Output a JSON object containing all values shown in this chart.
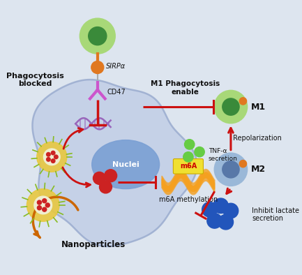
{
  "bg_color": "#dde5ef",
  "cell_color": "#c0cde6",
  "nuclei_color": "#7a9fd4",
  "macrophage_outer": "#a8d878",
  "macrophage_inner": "#3a8a3a",
  "m1_outer": "#a8d878",
  "m1_inner": "#3a8a3a",
  "m2_outer": "#9ab8d8",
  "m2_inner": "#5878a8",
  "nano_yellow": "#e8c840",
  "nano_green_spike": "#88bb22",
  "nano_red_dot": "#cc2222",
  "red_arrow": "#cc1111",
  "orange_arrow": "#cc6600",
  "tnf_dot": "#66cc44",
  "lactate_dot": "#2255bb",
  "m6a_color": "#f5a020",
  "m6a_bubble": "#f0e030",
  "dna_color": "#9966bb",
  "sirpa_color": "#e07820",
  "cd47_color": "#cc55cc",
  "text_dark": "#111111",
  "cell_edge": "#98aace",
  "labels": {
    "phagocytosis_blocked": "Phagocytosis\nblocked",
    "sirpa": "SIRPα",
    "cd47": "CD47",
    "m1_phagocytosis": "M1 Phagocytosis\nenable",
    "tnf": "TNF-α\nsecretion",
    "nuclei": "Nuclei",
    "m6a_label": "m6A",
    "m6a_methylation": "m6A methylation",
    "m1": "M1",
    "m2": "M2",
    "repolarization": "Repolarization",
    "inhibit_lactate": "Inhibit lactate\nsecretion",
    "nanoparticles": "Nanoparticles"
  }
}
